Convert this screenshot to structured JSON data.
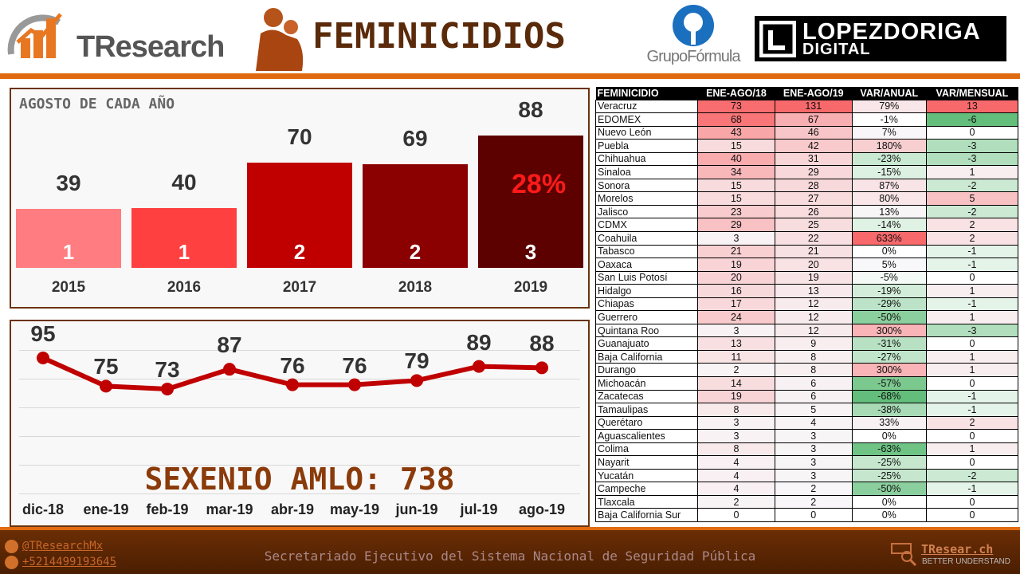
{
  "header": {
    "brand_left": "TResearch",
    "title": "FEMINICIDIOS",
    "brand_center": "GrupoFórmula",
    "brand_right_1": "LOPEZDORIGA",
    "brand_right_2": "DIGITAL"
  },
  "bar_panel": {
    "title": "AGOSTO DE CADA AÑO",
    "growth_label": "28%"
  },
  "chart_data": [
    {
      "type": "bar",
      "title": "AGOSTO DE CADA AÑO",
      "categories": [
        "2015",
        "2016",
        "2017",
        "2018",
        "2019"
      ],
      "values": [
        39,
        40,
        70,
        69,
        88
      ],
      "inner_labels": [
        "1",
        "1",
        "2",
        "2",
        "3"
      ],
      "colors": [
        "#ff7c80",
        "#ff4040",
        "#c00000",
        "#8b0000",
        "#5c0000"
      ],
      "annotation": "28%"
    },
    {
      "type": "line",
      "categories": [
        "dic-18",
        "ene-19",
        "feb-19",
        "mar-19",
        "abr-19",
        "may-19",
        "jun-19",
        "jul-19",
        "ago-19"
      ],
      "values": [
        95,
        75,
        73,
        87,
        76,
        76,
        79,
        89,
        88
      ],
      "color": "#c00000",
      "grid": true,
      "annotation": "SEXENIO AMLO: 738"
    }
  ],
  "line_panel": {
    "annotation": "SEXENIO AMLO: 738"
  },
  "table": {
    "headers": [
      "FEMINICIDIO",
      "ENE-AGO/18",
      "ENE-AGO/19",
      "VAR/ANUAL",
      "VAR/MENSUAL"
    ],
    "rows": [
      [
        "Veracruz",
        "73",
        "131",
        "79%",
        "13"
      ],
      [
        "EDOMEX",
        "68",
        "67",
        "-1%",
        "-6"
      ],
      [
        "Nuevo León",
        "43",
        "46",
        "7%",
        "0"
      ],
      [
        "Puebla",
        "15",
        "42",
        "180%",
        "-3"
      ],
      [
        "Chihuahua",
        "40",
        "31",
        "-23%",
        "-3"
      ],
      [
        "Sinaloa",
        "34",
        "29",
        "-15%",
        "1"
      ],
      [
        "Sonora",
        "15",
        "28",
        "87%",
        "-2"
      ],
      [
        "Morelos",
        "15",
        "27",
        "80%",
        "5"
      ],
      [
        "Jalisco",
        "23",
        "26",
        "13%",
        "-2"
      ],
      [
        "CDMX",
        "29",
        "25",
        "-14%",
        "2"
      ],
      [
        "Coahuila",
        "3",
        "22",
        "633%",
        "2"
      ],
      [
        "Tabasco",
        "21",
        "21",
        "0%",
        "-1"
      ],
      [
        "Oaxaca",
        "19",
        "20",
        "5%",
        "-1"
      ],
      [
        "San Luis Potosí",
        "20",
        "19",
        "-5%",
        "0"
      ],
      [
        "Hidalgo",
        "16",
        "13",
        "-19%",
        "1"
      ],
      [
        "Chiapas",
        "17",
        "12",
        "-29%",
        "-1"
      ],
      [
        "Guerrero",
        "24",
        "12",
        "-50%",
        "1"
      ],
      [
        "Quintana Roo",
        "3",
        "12",
        "300%",
        "-3"
      ],
      [
        "Guanajuato",
        "13",
        "9",
        "-31%",
        "0"
      ],
      [
        "Baja California",
        "11",
        "8",
        "-27%",
        "1"
      ],
      [
        "Durango",
        "2",
        "8",
        "300%",
        "1"
      ],
      [
        "Michoacán",
        "14",
        "6",
        "-57%",
        "0"
      ],
      [
        "Zacatecas",
        "19",
        "6",
        "-68%",
        "-1"
      ],
      [
        "Tamaulipas",
        "8",
        "5",
        "-38%",
        "-1"
      ],
      [
        "Querétaro",
        "3",
        "4",
        "33%",
        "2"
      ],
      [
        "Aguascalientes",
        "3",
        "3",
        "0%",
        "0"
      ],
      [
        "Colima",
        "8",
        "3",
        "-63%",
        "1"
      ],
      [
        "Nayarit",
        "4",
        "3",
        "-25%",
        "0"
      ],
      [
        "Yucatán",
        "4",
        "3",
        "-25%",
        "-2"
      ],
      [
        "Campeche",
        "4",
        "2",
        "-50%",
        "-1"
      ],
      [
        "Tlaxcala",
        "2",
        "2",
        "0%",
        "0"
      ],
      [
        "Baja California Sur",
        "0",
        "0",
        "0%",
        "0"
      ]
    ]
  },
  "footer": {
    "twitter": "@TResearchMx",
    "phone": "+5214499193645",
    "source": "Secretariado Ejecutivo del Sistema Nacional de Seguridad Pública",
    "site": "TResear.ch",
    "tagline": "BETTER UNDERSTAND"
  }
}
